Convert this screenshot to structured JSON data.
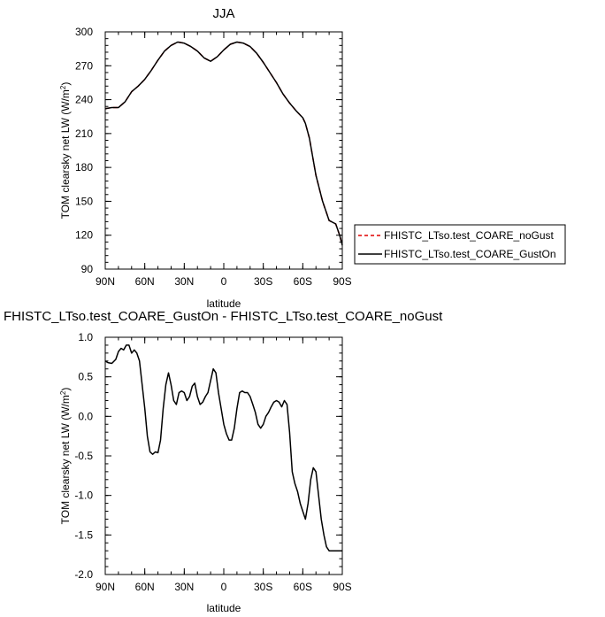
{
  "chart_data": [
    {
      "type": "line",
      "title": "JJA",
      "xlabel": "latitude",
      "ylabel": "TOM clearsky net LW (W/m",
      "ylabel_sup": "2",
      "ylabel_end": ")",
      "xlim": [
        90,
        -90
      ],
      "ylim": [
        90,
        300
      ],
      "x_ticks": [
        90,
        60,
        30,
        0,
        -30,
        -60,
        -90
      ],
      "x_tick_labels": [
        "90N",
        "60N",
        "30N",
        "0",
        "30S",
        "60S",
        "90S"
      ],
      "y_ticks": [
        90,
        120,
        150,
        180,
        210,
        240,
        270,
        300
      ],
      "y_tick_labels": [
        "90",
        "120",
        "150",
        "180",
        "210",
        "240",
        "270",
        "300"
      ],
      "legend": "right",
      "x": [
        90,
        85,
        80,
        75,
        70,
        65,
        60,
        55,
        50,
        45,
        40,
        35,
        30,
        25,
        20,
        15,
        10,
        5,
        0,
        -5,
        -10,
        -15,
        -20,
        -25,
        -30,
        -35,
        -40,
        -45,
        -50,
        -55,
        -60,
        -62,
        -65,
        -70,
        -75,
        -80,
        -85,
        -88,
        -90
      ],
      "series": [
        {
          "name": "FHISTC_LTso.test_COARE_noGust",
          "color": "#e00000",
          "dash": "dashed",
          "values": [
            232,
            233,
            233,
            238,
            247,
            252,
            258,
            266,
            275,
            283,
            288,
            291,
            290,
            287,
            283,
            277,
            274,
            278,
            284,
            289,
            291,
            290,
            287,
            281,
            273,
            264,
            255,
            245,
            237,
            230,
            224,
            219,
            206,
            173,
            150,
            133,
            130,
            120,
            111
          ]
        },
        {
          "name": "FHISTC_LTso.test_COARE_GustOn",
          "color": "#000000",
          "dash": "solid",
          "values": [
            232,
            233,
            233,
            238,
            247,
            252,
            258,
            266,
            275,
            283,
            288,
            291,
            290,
            287,
            283,
            277,
            274,
            278,
            284,
            289,
            291,
            290,
            287,
            281,
            273,
            264,
            255,
            245,
            237,
            230,
            224,
            219,
            206,
            173,
            150,
            133,
            130,
            120,
            111
          ]
        }
      ]
    },
    {
      "type": "line",
      "title": "FHISTC_LTso.test_COARE_GustOn - FHISTC_LTso.test_COARE_noGust",
      "xlabel": "latitude",
      "ylabel": "TOM clearsky net LW (W/m",
      "ylabel_sup": "2",
      "ylabel_end": ")",
      "xlim": [
        90,
        -90
      ],
      "ylim": [
        -2.0,
        1.0
      ],
      "x_ticks": [
        90,
        60,
        30,
        0,
        -30,
        -60,
        -90
      ],
      "x_tick_labels": [
        "90N",
        "60N",
        "30N",
        "0",
        "30S",
        "60S",
        "90S"
      ],
      "y_ticks": [
        1.0,
        0.5,
        0.0,
        -0.5,
        -1.0,
        -1.5,
        -2.0
      ],
      "y_tick_labels": [
        "1.0",
        "0.5",
        "0.0",
        "-0.5",
        "-1.0",
        "-1.5",
        "-2.0"
      ],
      "x": [
        90,
        88,
        85,
        82,
        80,
        78,
        76,
        74,
        72,
        70,
        68,
        66,
        64,
        62,
        60,
        58,
        56,
        54,
        52,
        50,
        48,
        46,
        44,
        42,
        40,
        38,
        36,
        34,
        32,
        30,
        28,
        26,
        24,
        22,
        20,
        18,
        16,
        14,
        12,
        10,
        8,
        6,
        4,
        2,
        0,
        -2,
        -4,
        -6,
        -8,
        -10,
        -12,
        -14,
        -16,
        -18,
        -20,
        -22,
        -24,
        -26,
        -28,
        -30,
        -32,
        -34,
        -36,
        -38,
        -40,
        -42,
        -44,
        -46,
        -48,
        -50,
        -52,
        -54,
        -56,
        -58,
        -60,
        -62,
        -64,
        -66,
        -68,
        -70,
        -72,
        -74,
        -76,
        -78,
        -80,
        -82,
        -84,
        -86,
        -88,
        -90
      ],
      "series": [
        {
          "name": "",
          "color": "#000000",
          "values": [
            0.7,
            0.68,
            0.67,
            0.72,
            0.82,
            0.86,
            0.84,
            0.9,
            0.9,
            0.8,
            0.84,
            0.8,
            0.7,
            0.4,
            0.1,
            -0.25,
            -0.45,
            -0.48,
            -0.45,
            -0.46,
            -0.3,
            0.1,
            0.4,
            0.55,
            0.4,
            0.2,
            0.15,
            0.3,
            0.32,
            0.3,
            0.2,
            0.25,
            0.38,
            0.42,
            0.25,
            0.15,
            0.18,
            0.25,
            0.3,
            0.45,
            0.6,
            0.55,
            0.3,
            0.1,
            -0.1,
            -0.22,
            -0.3,
            -0.3,
            -0.15,
            0.1,
            0.3,
            0.32,
            0.3,
            0.3,
            0.25,
            0.15,
            0.05,
            -0.1,
            -0.15,
            -0.1,
            0.0,
            0.05,
            0.12,
            0.18,
            0.2,
            0.18,
            0.12,
            0.2,
            0.15,
            -0.2,
            -0.7,
            -0.85,
            -0.95,
            -1.1,
            -1.2,
            -1.3,
            -1.1,
            -0.8,
            -0.65,
            -0.7,
            -1.0,
            -1.3,
            -1.5,
            -1.65,
            -1.7,
            -1.7,
            -1.7,
            -1.7,
            -1.7,
            -1.7
          ]
        }
      ]
    }
  ]
}
